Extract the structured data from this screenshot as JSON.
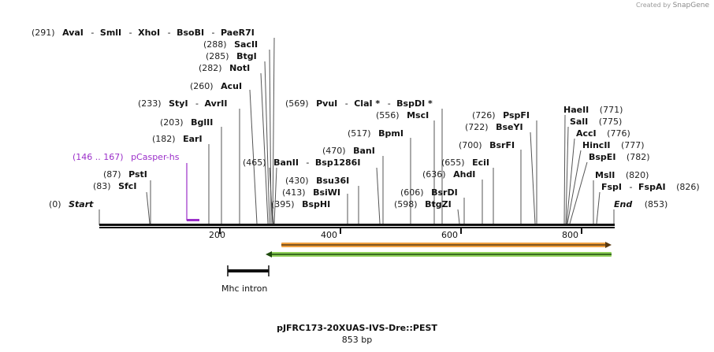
{
  "credit": {
    "prefix": "Created by",
    "brand": "SnapGene"
  },
  "title": "pJFRC173-20XUAS-IVS-Dre::PEST",
  "length_label": "853 bp",
  "ruler_ticks": [
    "200",
    "400",
    "600",
    "800"
  ],
  "features": {
    "mhc_intron": "Mhc intron",
    "pcasper_pos": "(146 .. 167)",
    "pcasper_name": "pCasper-hs"
  },
  "labels": {
    "start_pos": "(0)",
    "start_name": "Start",
    "end_name": "End",
    "end_pos": "(853)",
    "sfci_pos": "(83)",
    "sfci": "SfcI",
    "psti_pos": "(87)",
    "psti": "PstI",
    "eari_pos": "(182)",
    "eari": "EarI",
    "bglii_pos": "(203)",
    "bglii": "BglII",
    "styi_pos": "(233)",
    "styi": "StyI",
    "avrii": "AvrII",
    "acui_pos": "(260)",
    "acui": "AcuI",
    "noti_pos": "(282)",
    "noti": "NotI",
    "btgi_pos": "(285)",
    "btgi": "BtgI",
    "sacii_pos": "(288)",
    "sacii": "SacII",
    "top_pos": "(291)",
    "avai": "AvaI",
    "smli": "SmlI",
    "xhoi": "XhoI",
    "bsobi": "BsoBI",
    "paer7i": "PaeR7I",
    "bsphi_pos": "(395)",
    "bsphi": "BspHI",
    "bsiwi_pos": "(413)",
    "bsiwi": "BsiWI",
    "bsu36i_pos": "(430)",
    "bsu36i": "Bsu36I",
    "banii_pos": "(465)",
    "banii": "BanII",
    "bsp1286i": "Bsp1286I",
    "bani_pos": "(470)",
    "bani": "BanI",
    "bpmi_pos": "(517)",
    "bpmi": "BpmI",
    "mscl_pos": "(556)",
    "mscl": "MscI",
    "pvui_pos": "(569)",
    "pvui": "PvuI",
    "clai": "ClaI *",
    "bspdi": "BspDI *",
    "btgzi_pos": "(598)",
    "btgzi": "BtgZI",
    "bsrdi_pos": "(606)",
    "bsrdi": "BsrDI",
    "ahdi_pos": "(636)",
    "ahdi": "AhdI",
    "ecii_pos": "(655)",
    "ecii": "EciI",
    "bsrfi_pos": "(700)",
    "bsrfi": "BsrFI",
    "bseyi_pos": "(722)",
    "bseyi": "BseYI",
    "pspfi_pos": "(726)",
    "pspfi": "PspFI",
    "haeii": "HaeII",
    "haeii_pos": "(771)",
    "sali": "SalI",
    "sali_pos": "(775)",
    "acci": "AccI",
    "acci_pos": "(776)",
    "hincii": "HincII",
    "hincii_pos": "(777)",
    "bspei": "BspEI",
    "bspei_pos": "(782)",
    "msli": "MslI",
    "msli_pos": "(820)",
    "fspi": "FspI",
    "fspai": "FspAI",
    "fspi_pos": "(826)"
  },
  "colors": {
    "orange_arrow": "#f0a040",
    "orange_core": "#5a3a10",
    "green_arrow": "#8fd05a",
    "green_core": "#1e4a0c",
    "feature_purple": "#9b2fc9"
  }
}
